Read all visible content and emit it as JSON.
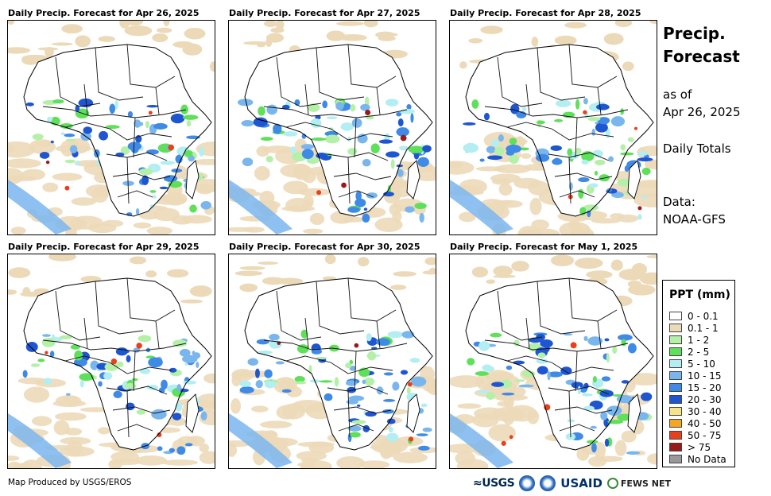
{
  "panels": [
    {
      "title": "Daily Precip. Forecast for Apr 26, 2025"
    },
    {
      "title": "Daily Precip. Forecast for Apr 27, 2025"
    },
    {
      "title": "Daily Precip. Forecast for Apr 28, 2025"
    },
    {
      "title": "Daily Precip. Forecast for Apr 29, 2025"
    },
    {
      "title": "Daily Precip. Forecast for Apr 30, 2025"
    },
    {
      "title": "Daily Precip. Forecast for May 1, 2025"
    }
  ],
  "side": {
    "title_line1": "Precip.",
    "title_line2": "Forecast",
    "asof_line1": "as of",
    "asof_line2": "Apr 26, 2025",
    "totals": "Daily Totals",
    "data_label": "Data:",
    "data_source": "NOAA-GFS"
  },
  "legend": {
    "title": "PPT (mm)",
    "items": [
      {
        "label": "0 - 0.1",
        "color": "#ffffff"
      },
      {
        "label": "0.1 - 1",
        "color": "#ecd9b8"
      },
      {
        "label": "1 - 2",
        "color": "#b4f0a8"
      },
      {
        "label": "2 - 5",
        "color": "#5ee05a"
      },
      {
        "label": "5 - 10",
        "color": "#b3eef2"
      },
      {
        "label": "10 - 15",
        "color": "#7ab6ee"
      },
      {
        "label": "15 - 20",
        "color": "#3e8ae6"
      },
      {
        "label": "20 - 30",
        "color": "#1e56d2"
      },
      {
        "label": "30 - 40",
        "color": "#f6e48a"
      },
      {
        "label": "40 - 50",
        "color": "#f5a623"
      },
      {
        "label": "50 - 75",
        "color": "#e8401c"
      },
      {
        "label": "> 75",
        "color": "#9a1a1a"
      },
      {
        "label": "No Data",
        "color": "#999999"
      }
    ]
  },
  "footer": {
    "credit": "Map Produced by USGS/EROS",
    "logo_usgs": "≈USGS",
    "logo_usaid": "USAID",
    "logo_fews": "FEWS NET"
  }
}
